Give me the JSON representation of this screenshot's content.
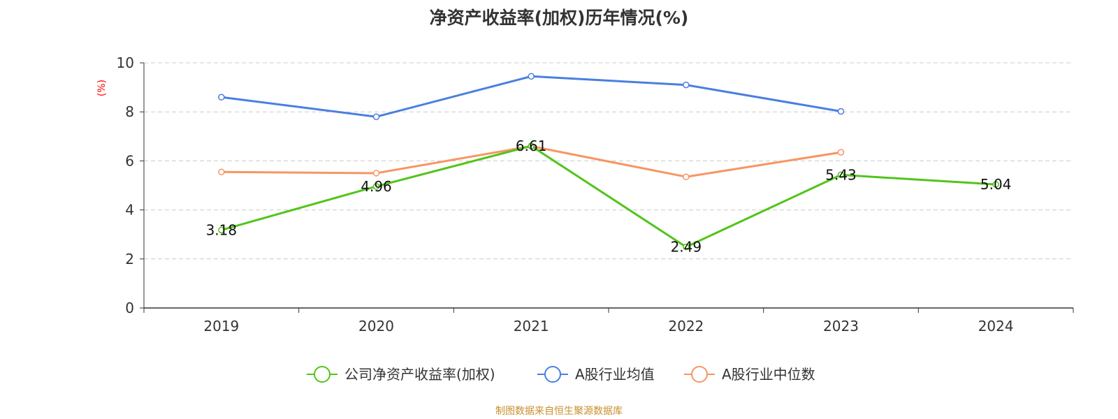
{
  "chart_data": {
    "type": "line",
    "title": "净资产收益率(加权)历年情况(%)",
    "ylabel": "(%)",
    "xlabel": "",
    "ylim": [
      0,
      10
    ],
    "yticks": [
      0,
      2,
      4,
      6,
      8,
      10
    ],
    "grid": true,
    "legend_position": "bottom",
    "categories": [
      "2019",
      "2020",
      "2021",
      "2022",
      "2023",
      "2024"
    ],
    "series": [
      {
        "name": "公司净资产收益率(加权)",
        "color": "#52c41a",
        "values": [
          3.18,
          4.96,
          6.61,
          2.49,
          5.43,
          5.04
        ],
        "show_labels": true,
        "labels": [
          "3.18",
          "4.96",
          "6.61",
          "2.49",
          "5.43",
          "5.04"
        ]
      },
      {
        "name": "A股行业均值",
        "color": "#4a7fe0",
        "values": [
          8.6,
          7.8,
          9.45,
          9.1,
          8.02,
          null
        ],
        "show_labels": false
      },
      {
        "name": "A股行业中位数",
        "color": "#f79563",
        "values": [
          5.55,
          5.5,
          6.6,
          5.35,
          6.35,
          null
        ],
        "show_labels": false
      }
    ]
  },
  "source": "制图数据来自恒生聚源数据库"
}
